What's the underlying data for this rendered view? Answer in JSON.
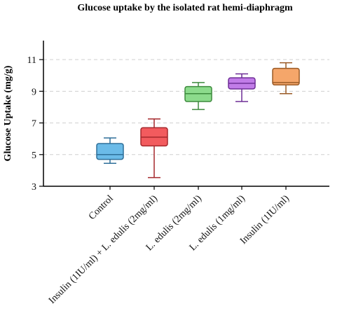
{
  "chart_data": {
    "type": "box",
    "title": "Glucose uptake by the isolated rat hemi-diaphragm",
    "xlabel": "",
    "ylabel": "Glucose Uptake (mg/g)",
    "ylim": [
      3,
      12.2
    ],
    "yticks": [
      3,
      5,
      7,
      9,
      11
    ],
    "grid": "horizontal dashed",
    "categories": [
      "Control",
      "Insulin (1IU/ml) + L. edulis (2mg/ml)",
      "L. edulis (2mg/ml)",
      "L. edulis (1mg/ml)",
      "Insulin (1IU/ml)"
    ],
    "boxes": [
      {
        "min": 4.45,
        "q1": 4.7,
        "median": 5.0,
        "q3": 5.7,
        "max": 6.05,
        "fill": "#6bbbe8",
        "stroke": "#2e6f99"
      },
      {
        "min": 3.55,
        "q1": 5.55,
        "median": 6.1,
        "q3": 6.7,
        "max": 7.25,
        "fill": "#f25b5e",
        "stroke": "#a5282c"
      },
      {
        "min": 7.85,
        "q1": 8.35,
        "median": 8.85,
        "q3": 9.3,
        "max": 9.55,
        "fill": "#8cdb8c",
        "stroke": "#3d8a3d"
      },
      {
        "min": 8.35,
        "q1": 9.15,
        "median": 9.5,
        "q3": 9.85,
        "max": 10.1,
        "fill": "#c17ce8",
        "stroke": "#6e2e96"
      },
      {
        "min": 8.85,
        "q1": 9.4,
        "median": 9.55,
        "q3": 10.45,
        "max": 10.8,
        "fill": "#f5a66a",
        "stroke": "#9a5a26"
      }
    ]
  }
}
